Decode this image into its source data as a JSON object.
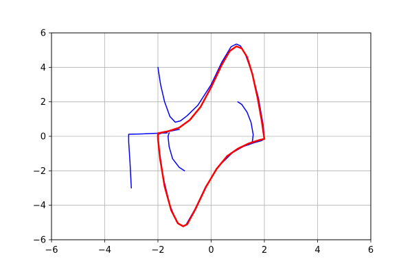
{
  "chart_data": {
    "type": "line",
    "title": "",
    "xlabel": "",
    "ylabel": "",
    "xlim": [
      -6,
      6
    ],
    "ylim": [
      -6,
      6
    ],
    "x_ticks": [
      -6,
      -4,
      -2,
      0,
      2,
      4,
      6
    ],
    "y_ticks": [
      -6,
      -4,
      -2,
      0,
      2,
      4,
      6
    ],
    "x_tick_labels": [
      "−6",
      "−4",
      "−2",
      "0",
      "2",
      "4",
      "6"
    ],
    "y_tick_labels": [
      "−6",
      "−4",
      "−2",
      "0",
      "2",
      "4",
      "6"
    ],
    "grid": true,
    "series": [
      {
        "color": "#0000ff",
        "line_width": 1.5,
        "points": [
          [
            -2.0,
            4.0
          ],
          [
            -1.9,
            3.0
          ],
          [
            -1.75,
            2.0
          ],
          [
            -1.55,
            1.15
          ],
          [
            -1.35,
            0.82
          ],
          [
            -1.15,
            0.9
          ],
          [
            -0.9,
            1.2
          ],
          [
            -0.5,
            1.8
          ],
          [
            0.0,
            3.0
          ],
          [
            0.4,
            4.3
          ],
          [
            0.75,
            5.2
          ],
          [
            0.95,
            5.35
          ],
          [
            1.1,
            5.25
          ],
          [
            1.3,
            4.7
          ],
          [
            1.55,
            3.6
          ],
          [
            1.78,
            2.2
          ],
          [
            1.95,
            0.7
          ],
          [
            2.0,
            -0.15
          ],
          [
            1.9,
            -0.25
          ],
          [
            1.6,
            -0.38
          ],
          [
            1.2,
            -0.6
          ],
          [
            0.8,
            -0.95
          ],
          [
            0.3,
            -1.7
          ],
          [
            -0.2,
            -2.9
          ],
          [
            -0.6,
            -4.2
          ],
          [
            -0.95,
            -5.15
          ],
          [
            -1.1,
            -5.2
          ],
          [
            -1.3,
            -4.95
          ],
          [
            -1.55,
            -4.0
          ],
          [
            -1.8,
            -2.4
          ],
          [
            -1.95,
            -0.8
          ],
          [
            -2.0,
            0.1
          ],
          [
            -1.8,
            0.22
          ],
          [
            -1.2,
            0.4
          ]
        ]
      },
      {
        "color": "#0000ff",
        "line_width": 1.5,
        "points": [
          [
            1.0,
            2.0
          ],
          [
            1.15,
            1.85
          ],
          [
            1.35,
            1.4
          ],
          [
            1.5,
            0.8
          ],
          [
            1.58,
            0.1
          ],
          [
            1.55,
            -0.3
          ],
          [
            1.4,
            -0.5
          ]
        ]
      },
      {
        "color": "#0000ff",
        "line_width": 1.5,
        "points": [
          [
            -3.0,
            -3.0
          ],
          [
            -3.05,
            -1.5
          ],
          [
            -3.1,
            -0.3
          ],
          [
            -3.1,
            0.12
          ],
          [
            -2.6,
            0.14
          ],
          [
            -2.0,
            0.18
          ],
          [
            -1.65,
            0.2
          ]
        ]
      },
      {
        "color": "#0000ff",
        "line_width": 1.5,
        "points": [
          [
            -1.0,
            -2.0
          ],
          [
            -1.2,
            -1.8
          ],
          [
            -1.45,
            -1.3
          ],
          [
            -1.58,
            -0.6
          ],
          [
            -1.62,
            0.0
          ],
          [
            -1.58,
            0.2
          ]
        ]
      },
      {
        "color": "#ff0000",
        "line_width": 2.5,
        "points": [
          [
            -2.0,
            0.18
          ],
          [
            -1.6,
            0.3
          ],
          [
            -1.2,
            0.5
          ],
          [
            -0.8,
            0.95
          ],
          [
            -0.4,
            1.7
          ],
          [
            0.0,
            2.85
          ],
          [
            0.4,
            4.15
          ],
          [
            0.7,
            4.95
          ],
          [
            0.95,
            5.22
          ],
          [
            1.15,
            5.1
          ],
          [
            1.35,
            4.6
          ],
          [
            1.55,
            3.6
          ],
          [
            1.75,
            2.2
          ],
          [
            1.9,
            0.9
          ],
          [
            1.98,
            0.05
          ],
          [
            2.0,
            -0.15
          ],
          [
            1.8,
            -0.22
          ],
          [
            1.4,
            -0.42
          ],
          [
            1.0,
            -0.72
          ],
          [
            0.6,
            -1.15
          ],
          [
            0.2,
            -1.9
          ],
          [
            -0.2,
            -2.95
          ],
          [
            -0.6,
            -4.25
          ],
          [
            -0.9,
            -5.1
          ],
          [
            -1.05,
            -5.22
          ],
          [
            -1.25,
            -5.05
          ],
          [
            -1.5,
            -4.3
          ],
          [
            -1.75,
            -2.9
          ],
          [
            -1.92,
            -1.3
          ],
          [
            -2.0,
            -0.15
          ],
          [
            -2.0,
            0.18
          ]
        ]
      }
    ]
  }
}
